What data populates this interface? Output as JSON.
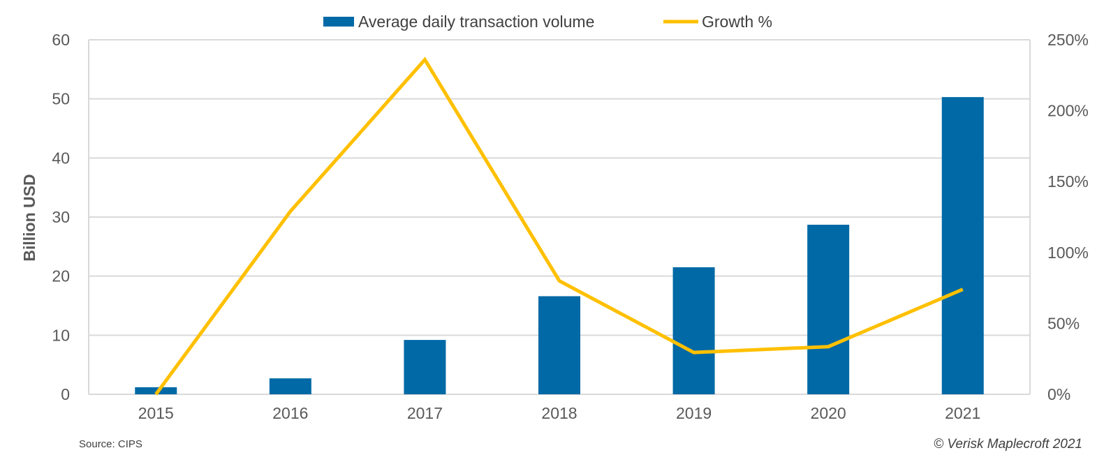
{
  "chart_data": {
    "type": "bar+line",
    "categories": [
      "2015",
      "2016",
      "2017",
      "2018",
      "2019",
      "2020",
      "2021"
    ],
    "series": [
      {
        "name": "Average daily transaction volume",
        "type": "bar",
        "axis": "left",
        "color": "#0069A6",
        "values": [
          1.2,
          2.7,
          9.2,
          16.6,
          21.5,
          28.7,
          50.3
        ]
      },
      {
        "name": "Growth %",
        "type": "line",
        "axis": "right",
        "color": "#FFC000",
        "values": [
          0,
          129,
          236,
          80,
          29.5,
          33.6,
          74
        ]
      }
    ],
    "ylabel": "Billion USD",
    "ylim": [
      0,
      60
    ],
    "yticks": [
      "0",
      "10",
      "20",
      "30",
      "40",
      "50",
      "60"
    ],
    "y2lim": [
      0,
      250
    ],
    "y2ticks": [
      "0%",
      "50%",
      "100%",
      "150%",
      "200%",
      "250%"
    ],
    "grid": true,
    "legend_position": "top"
  },
  "footer": {
    "source": "Source: CIPS",
    "copyright": "© Verisk Maplecroft 2021"
  }
}
